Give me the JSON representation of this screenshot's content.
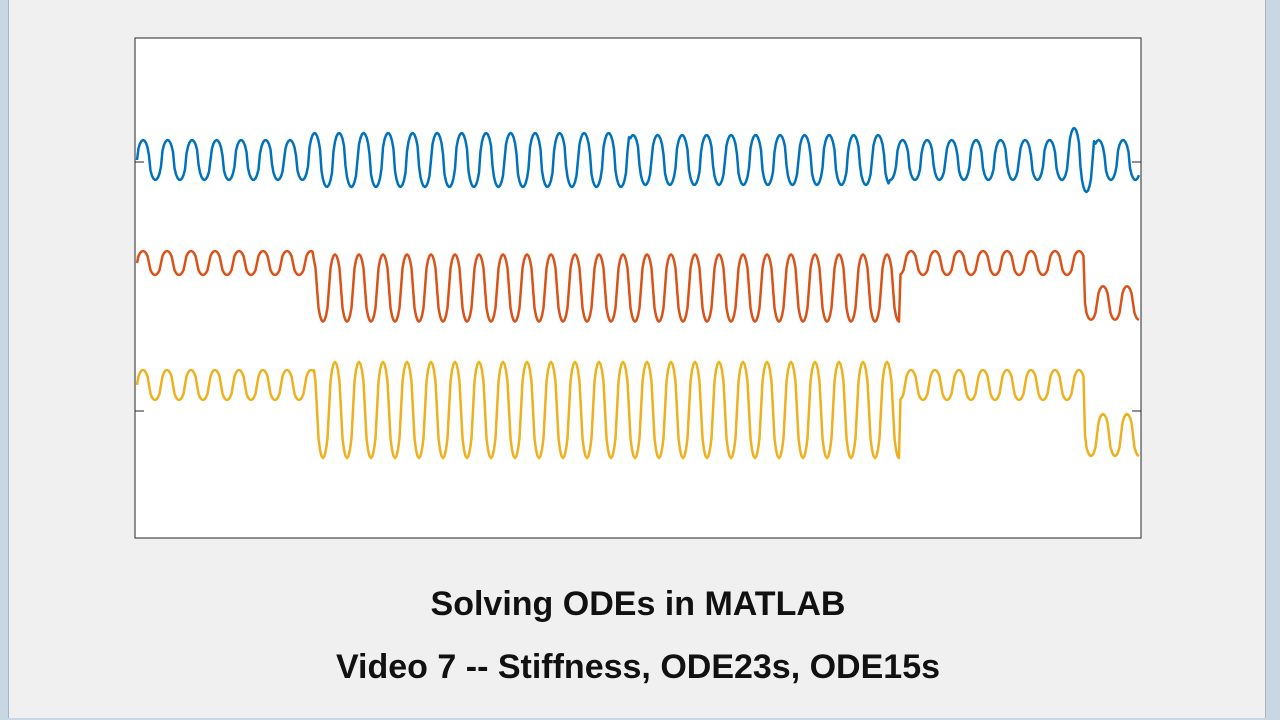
{
  "caption": {
    "line1": "Solving ODEs in MATLAB",
    "line2": "Video 7 -- Stiffness, ODE23s, ODE15s"
  },
  "chart_data": {
    "type": "line",
    "title": "",
    "xlabel": "",
    "ylabel": "",
    "grid": false,
    "legend": "none",
    "series": [
      {
        "color": "#0072BD"
      },
      {
        "color": "#D95319"
      },
      {
        "color": "#EDB120"
      }
    ]
  }
}
